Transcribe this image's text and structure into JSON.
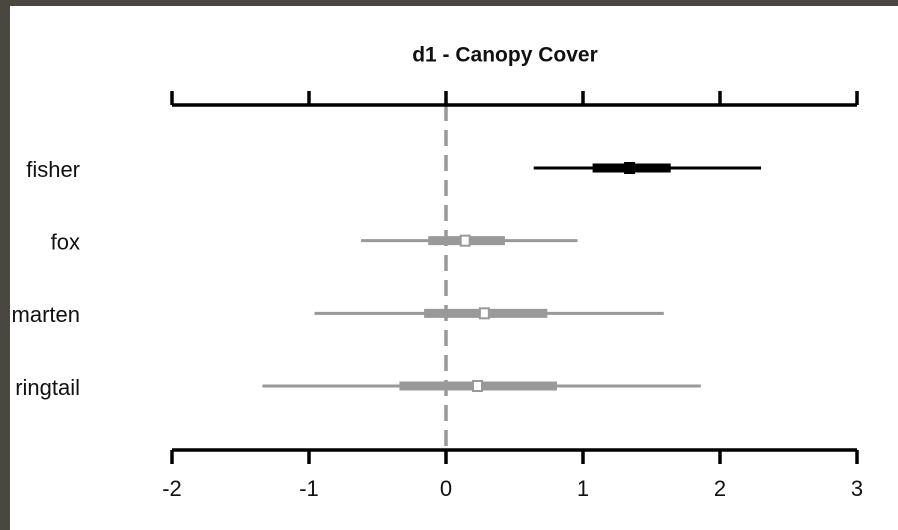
{
  "chart_data": {
    "type": "forest",
    "title": "d1 - Canopy Cover",
    "categories": [
      "fisher",
      "fox",
      "marten",
      "ringtail"
    ],
    "values": [
      1.34,
      0.14,
      0.28,
      0.23
    ],
    "low": [
      0.64,
      -0.62,
      -0.96,
      -1.34
    ],
    "high": [
      2.3,
      0.96,
      1.59,
      1.86
    ],
    "low50": [
      1.07,
      -0.13,
      -0.16,
      -0.34
    ],
    "high50": [
      1.64,
      0.43,
      0.74,
      0.81
    ],
    "colors": [
      "#000000",
      "#999999",
      "#999999",
      "#999999"
    ],
    "point_fills": [
      "#000000",
      "#ffffff",
      "#ffffff",
      "#ffffff"
    ],
    "ref_line": 0,
    "xlim": [
      -2,
      3
    ],
    "xticks": [
      -2,
      -1,
      0,
      1,
      2,
      3
    ]
  }
}
